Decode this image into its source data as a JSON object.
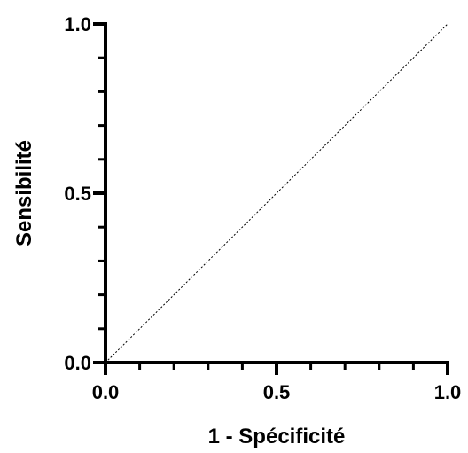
{
  "chart_data": {
    "type": "line",
    "title": "",
    "xlabel": "1 - Spécificité",
    "ylabel": "Sensibilité",
    "xlim": [
      0,
      1
    ],
    "ylim": [
      0,
      1
    ],
    "x_ticks": [
      {
        "value": 0.0,
        "label": "0.0"
      },
      {
        "value": 0.5,
        "label": "0.5"
      },
      {
        "value": 1.0,
        "label": "1.0"
      }
    ],
    "y_ticks": [
      {
        "value": 0.0,
        "label": "0.0"
      },
      {
        "value": 0.5,
        "label": "0.5"
      },
      {
        "value": 1.0,
        "label": "1.0"
      }
    ],
    "minor_ticks_per_interval": 4,
    "grid": false,
    "legend": "none",
    "series": [
      {
        "style": "dotted",
        "color": "#000000",
        "x": [
          0,
          1
        ],
        "y": [
          0,
          1
        ]
      }
    ]
  }
}
